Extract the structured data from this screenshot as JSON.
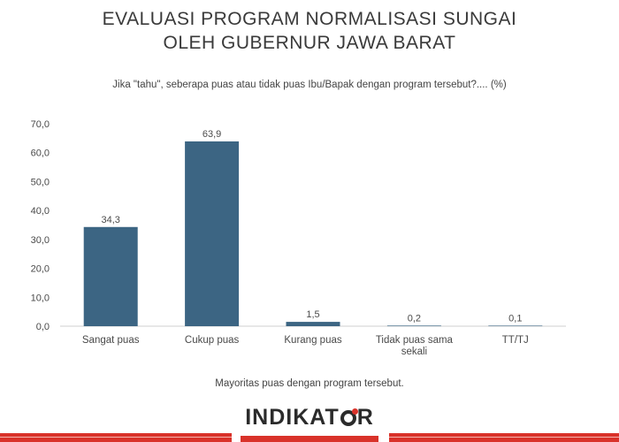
{
  "page": {
    "title_line1": "EVALUASI PROGRAM NORMALISASI SUNGAI",
    "title_line2": "OLEH GUBERNUR JAWA BARAT",
    "question": "Jika \"tahu\", seberapa puas atau tidak puas Ibu/Bapak dengan program tersebut?.... (%)",
    "note": "Mayoritas puas dengan program tersebut.",
    "logo_part1": "INDIKAT",
    "logo_part2": "R"
  },
  "colors": {
    "bar": "#3c6583",
    "axis": "#cfcfcf",
    "text": "#4a4a4a",
    "accent": "#d9322a"
  },
  "chart_data": {
    "type": "bar",
    "categories": [
      "Sangat puas",
      "Cukup puas",
      "Kurang puas",
      "Tidak puas sama sekali",
      "TT/TJ"
    ],
    "category_lines": [
      [
        "Sangat puas"
      ],
      [
        "Cukup puas"
      ],
      [
        "Kurang puas"
      ],
      [
        "Tidak puas sama",
        "sekali"
      ],
      [
        "TT/TJ"
      ]
    ],
    "values": [
      34.3,
      63.9,
      1.5,
      0.2,
      0.1
    ],
    "value_labels": [
      "34,3",
      "63,9",
      "1,5",
      "0,2",
      "0,1"
    ],
    "ylim": [
      0,
      70
    ],
    "yticks": [
      0,
      10,
      20,
      30,
      40,
      50,
      60,
      70
    ],
    "ytick_labels": [
      "0,0",
      "10,0",
      "20,0",
      "30,0",
      "40,0",
      "50,0",
      "60,0",
      "70,0"
    ],
    "grid": false
  }
}
